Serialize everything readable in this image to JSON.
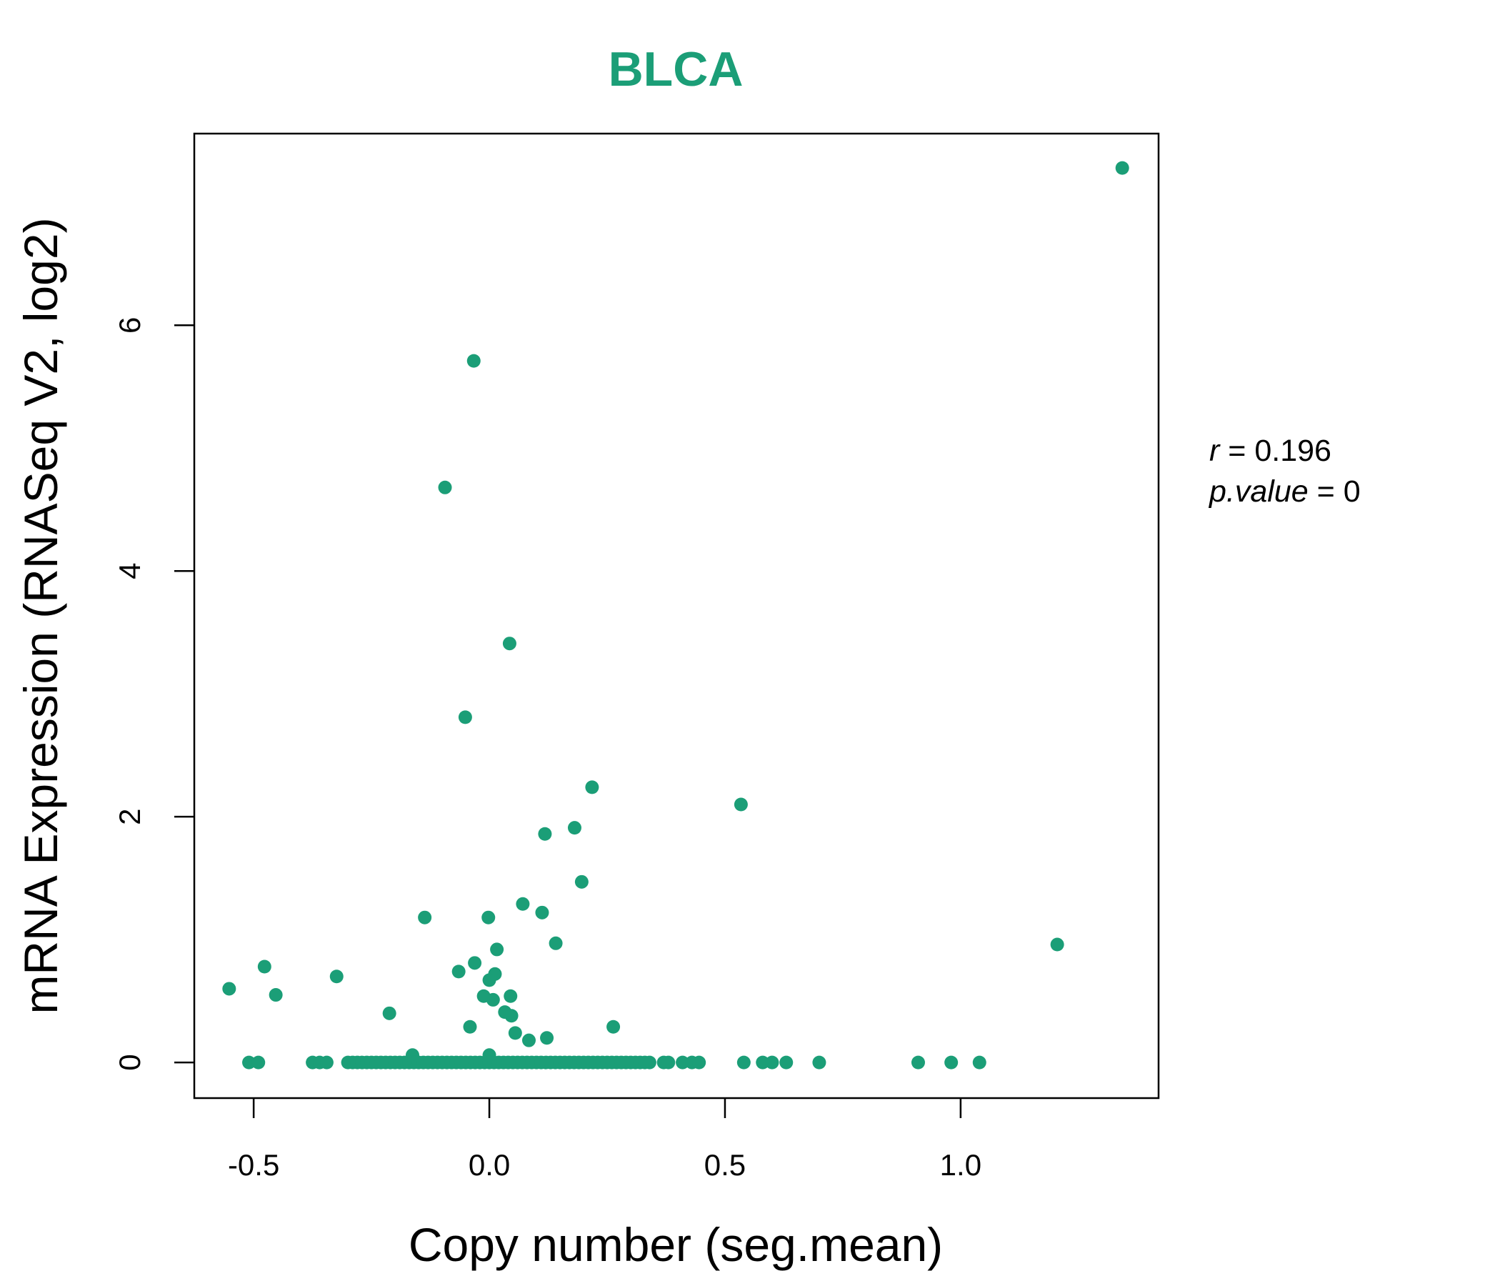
{
  "chart_data": {
    "type": "scatter",
    "title": "BLCA",
    "xlabel": "Copy number (seg.mean)",
    "ylabel": "mRNA Expression (RNASeq V2, log2)",
    "xlim": [
      -0.626,
      1.42
    ],
    "ylim": [
      -0.29,
      7.56
    ],
    "xticks": [
      -0.5,
      0.0,
      0.5,
      1.0
    ],
    "xtick_labels": [
      "-0.5",
      "0.0",
      "0.5",
      "1.0"
    ],
    "yticks": [
      0,
      2,
      4,
      6
    ],
    "ytick_labels": [
      "0",
      "2",
      "4",
      "6"
    ],
    "grid": false,
    "point_color": "#1B9E77",
    "annotation": {
      "r_label": "r",
      "r_value": "0.196",
      "p_label": "p.value",
      "p_value": "0"
    },
    "points": [
      [
        1.343,
        7.28
      ],
      [
        -0.033,
        5.71
      ],
      [
        -0.094,
        4.68
      ],
      [
        0.043,
        3.41
      ],
      [
        -0.051,
        2.81
      ],
      [
        0.218,
        2.24
      ],
      [
        0.534,
        2.1
      ],
      [
        0.181,
        1.91
      ],
      [
        0.118,
        1.86
      ],
      [
        0.196,
        1.47
      ],
      [
        0.071,
        1.29
      ],
      [
        0.112,
        1.22
      ],
      [
        -0.137,
        1.18
      ],
      [
        -0.002,
        1.18
      ],
      [
        0.141,
        0.97
      ],
      [
        1.205,
        0.96
      ],
      [
        0.016,
        0.92
      ],
      [
        -0.477,
        0.78
      ],
      [
        -0.031,
        0.81
      ],
      [
        -0.065,
        0.74
      ],
      [
        -0.324,
        0.7
      ],
      [
        0.012,
        0.72
      ],
      [
        0.0,
        0.67
      ],
      [
        -0.552,
        0.6
      ],
      [
        -0.453,
        0.55
      ],
      [
        -0.012,
        0.54
      ],
      [
        0.045,
        0.54
      ],
      [
        0.008,
        0.51
      ],
      [
        -0.212,
        0.4
      ],
      [
        0.033,
        0.41
      ],
      [
        0.047,
        0.38
      ],
      [
        -0.041,
        0.29
      ],
      [
        0.263,
        0.29
      ],
      [
        0.055,
        0.24
      ],
      [
        0.122,
        0.2
      ],
      [
        0.084,
        0.18
      ],
      [
        -0.163,
        0.06
      ],
      [
        0.0,
        0.06
      ],
      [
        -0.51,
        0
      ],
      [
        -0.49,
        0
      ],
      [
        -0.375,
        0
      ],
      [
        -0.36,
        0
      ],
      [
        -0.345,
        0
      ],
      [
        -0.3,
        0
      ],
      [
        -0.29,
        0
      ],
      [
        -0.28,
        0
      ],
      [
        -0.27,
        0
      ],
      [
        -0.26,
        0
      ],
      [
        -0.25,
        0
      ],
      [
        -0.24,
        0
      ],
      [
        -0.23,
        0
      ],
      [
        -0.22,
        0
      ],
      [
        -0.21,
        0
      ],
      [
        -0.2,
        0
      ],
      [
        -0.19,
        0
      ],
      [
        -0.18,
        0
      ],
      [
        -0.17,
        0
      ],
      [
        -0.16,
        0
      ],
      [
        -0.15,
        0
      ],
      [
        -0.14,
        0
      ],
      [
        -0.13,
        0
      ],
      [
        -0.12,
        0
      ],
      [
        -0.11,
        0
      ],
      [
        -0.1,
        0
      ],
      [
        -0.09,
        0
      ],
      [
        -0.08,
        0
      ],
      [
        -0.07,
        0
      ],
      [
        -0.06,
        0
      ],
      [
        -0.05,
        0
      ],
      [
        -0.04,
        0
      ],
      [
        -0.03,
        0
      ],
      [
        -0.02,
        0
      ],
      [
        -0.01,
        0
      ],
      [
        0.0,
        0
      ],
      [
        0.01,
        0
      ],
      [
        0.02,
        0
      ],
      [
        0.03,
        0
      ],
      [
        0.04,
        0
      ],
      [
        0.05,
        0
      ],
      [
        0.06,
        0
      ],
      [
        0.07,
        0
      ],
      [
        0.08,
        0
      ],
      [
        0.09,
        0
      ],
      [
        0.1,
        0
      ],
      [
        0.11,
        0
      ],
      [
        0.12,
        0
      ],
      [
        0.13,
        0
      ],
      [
        0.14,
        0
      ],
      [
        0.15,
        0
      ],
      [
        0.16,
        0
      ],
      [
        0.17,
        0
      ],
      [
        0.18,
        0
      ],
      [
        0.19,
        0
      ],
      [
        0.2,
        0
      ],
      [
        0.21,
        0
      ],
      [
        0.22,
        0
      ],
      [
        0.23,
        0
      ],
      [
        0.24,
        0
      ],
      [
        0.25,
        0
      ],
      [
        0.26,
        0
      ],
      [
        0.27,
        0
      ],
      [
        0.28,
        0
      ],
      [
        0.29,
        0
      ],
      [
        0.3,
        0
      ],
      [
        0.31,
        0
      ],
      [
        0.32,
        0
      ],
      [
        0.33,
        0
      ],
      [
        0.34,
        0
      ],
      [
        0.37,
        0
      ],
      [
        0.38,
        0
      ],
      [
        0.41,
        0
      ],
      [
        0.43,
        0
      ],
      [
        0.445,
        0
      ],
      [
        0.54,
        0
      ],
      [
        0.58,
        0
      ],
      [
        0.6,
        0
      ],
      [
        0.63,
        0
      ],
      [
        0.7,
        0
      ],
      [
        0.91,
        0
      ],
      [
        0.98,
        0
      ],
      [
        1.04,
        0
      ]
    ]
  }
}
